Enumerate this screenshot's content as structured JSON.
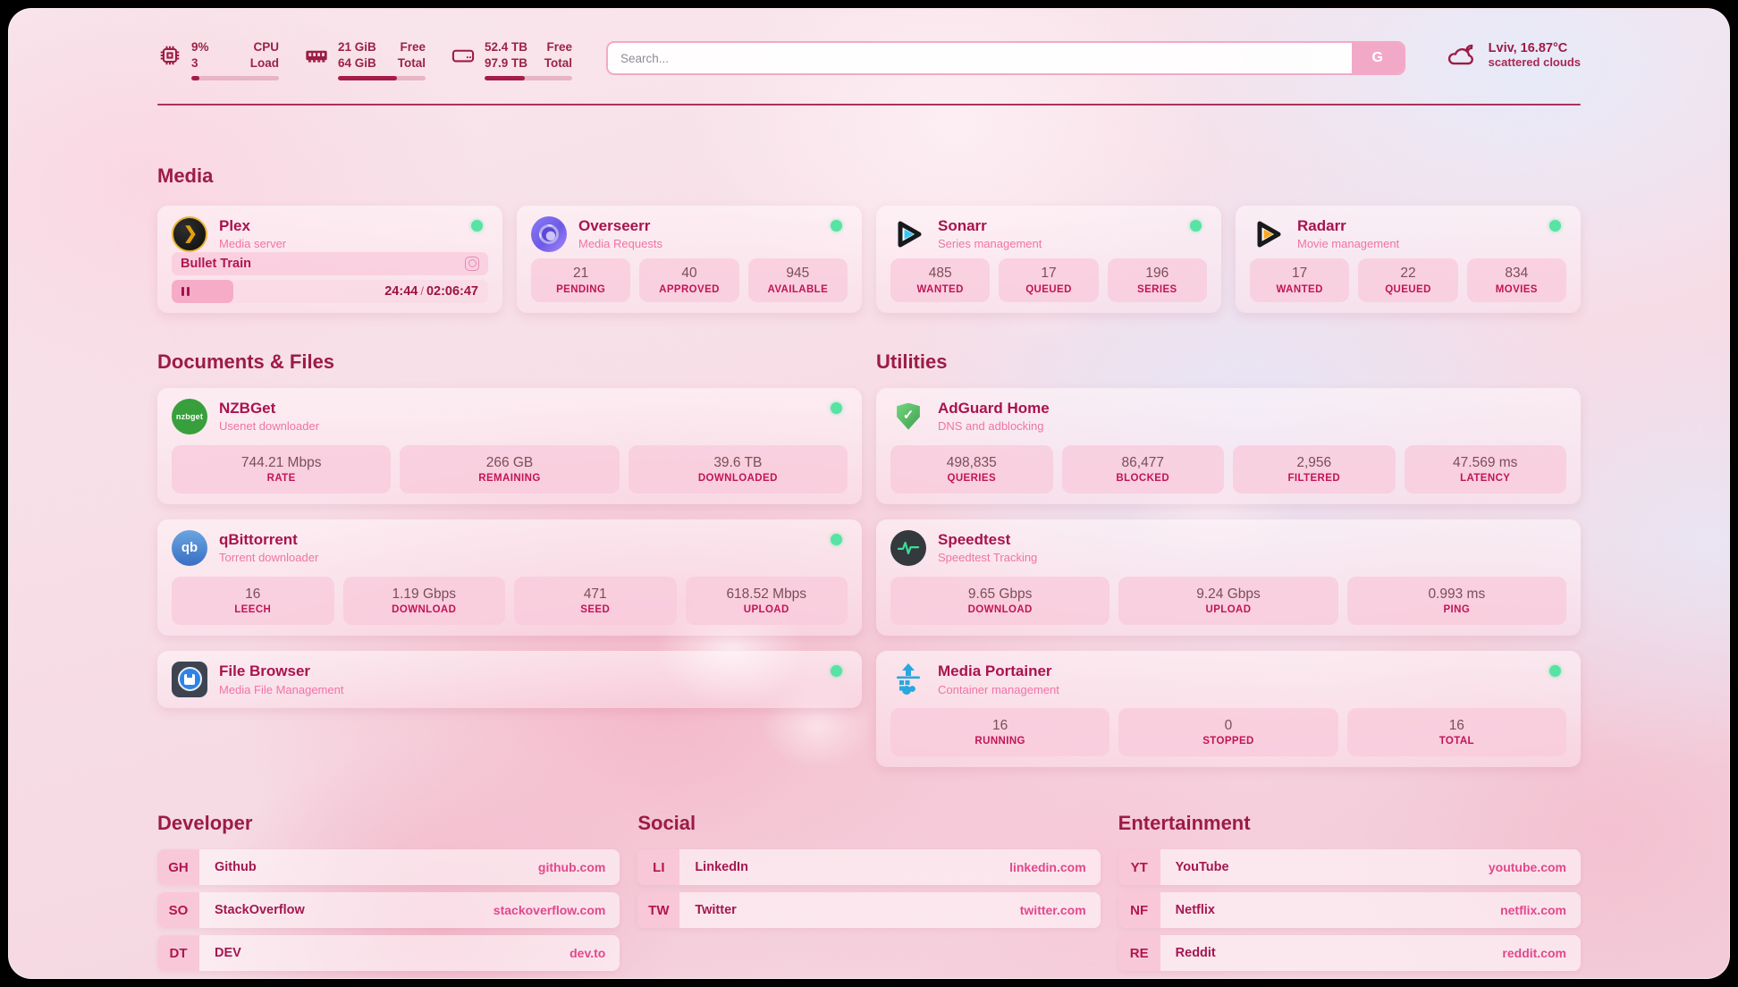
{
  "colors": {
    "accent": "#a61c48",
    "heading": "#9c1b47",
    "subtitle_pink": "#f074a4",
    "stat_label": "#c11556",
    "stat_value": "#7b4d59",
    "link_url": "#e1488c",
    "status_dot_green": "#57e3a3",
    "search_border": "#f2a9c7"
  },
  "icons": {
    "cpu-chip-icon": "svg-chip",
    "ram-icon": "svg-ram-stick",
    "disk-icon": "svg-drive",
    "cloud-icon": "svg-cloud-outline",
    "plex-icon": "❯",
    "overseerr-icon": "css-purple-eye-circle",
    "sonarr-icon": "svg-play-triangle-blue",
    "radarr-icon": "svg-play-triangle-orange",
    "nzbget-icon": "nzbget",
    "qbittorrent-icon": "qb",
    "filebrowser-icon": "css-floppy-in-circle",
    "adguard-icon": "✓",
    "speedtest-icon": "svg-pulse-line",
    "portainer-icon": "svg-crane-blocks",
    "now-playing-icon": "css-lens-square",
    "pause-icon": "css-double-bars",
    "status-dot": "css-green-dot"
  },
  "topbar": {
    "cpu": {
      "value_top": "9%",
      "value_bottom": "3",
      "label_top": "CPU",
      "label_bottom": "Load",
      "bar_percent": 9
    },
    "ram": {
      "value_top": "21 GiB",
      "value_bottom": "64 GiB",
      "label_top": "Free",
      "label_bottom": "Total",
      "bar_percent": 67
    },
    "disk": {
      "value_top": "52.4 TB",
      "value_bottom": "97.9 TB",
      "label_top": "Free",
      "label_bottom": "Total",
      "bar_percent": 46
    },
    "search": {
      "placeholder": "Search...",
      "button_label": "G"
    },
    "weather": {
      "location_temp": "Lviv, 16.87°C",
      "condition": "scattered clouds"
    }
  },
  "sections": {
    "media": {
      "title": "Media",
      "cards": [
        {
          "name": "Plex",
          "subtitle": "Media server",
          "online": true,
          "now_playing": {
            "title": "Bullet Train",
            "time": "24:44",
            "separator": "/",
            "duration": "02:06:47",
            "progress_percent": 19.5
          }
        },
        {
          "name": "Overseerr",
          "subtitle": "Media Requests",
          "online": true,
          "stats": [
            {
              "value": "21",
              "label": "PENDING"
            },
            {
              "value": "40",
              "label": "APPROVED"
            },
            {
              "value": "945",
              "label": "AVAILABLE"
            }
          ]
        },
        {
          "name": "Sonarr",
          "subtitle": "Series management",
          "online": true,
          "stats": [
            {
              "value": "485",
              "label": "WANTED"
            },
            {
              "value": "17",
              "label": "QUEUED"
            },
            {
              "value": "196",
              "label": "SERIES"
            }
          ]
        },
        {
          "name": "Radarr",
          "subtitle": "Movie management",
          "online": true,
          "stats": [
            {
              "value": "17",
              "label": "WANTED"
            },
            {
              "value": "22",
              "label": "QUEUED"
            },
            {
              "value": "834",
              "label": "MOVIES"
            }
          ]
        }
      ]
    },
    "documents": {
      "title": "Documents & Files",
      "cards": [
        {
          "name": "NZBGet",
          "subtitle": "Usenet downloader",
          "online": true,
          "stats": [
            {
              "value": "744.21 Mbps",
              "label": "RATE"
            },
            {
              "value": "266 GB",
              "label": "REMAINING"
            },
            {
              "value": "39.6 TB",
              "label": "DOWNLOADED"
            }
          ]
        },
        {
          "name": "qBittorrent",
          "subtitle": "Torrent downloader",
          "online": true,
          "stats": [
            {
              "value": "16",
              "label": "LEECH"
            },
            {
              "value": "1.19 Gbps",
              "label": "DOWNLOAD"
            },
            {
              "value": "471",
              "label": "SEED"
            },
            {
              "value": "618.52 Mbps",
              "label": "UPLOAD"
            }
          ]
        },
        {
          "name": "File Browser",
          "subtitle": "Media File Management",
          "online": true,
          "stats": []
        }
      ]
    },
    "utilities": {
      "title": "Utilities",
      "cards": [
        {
          "name": "AdGuard Home",
          "subtitle": "DNS and adblocking",
          "online": false,
          "stats": [
            {
              "value": "498,835",
              "label": "QUERIES"
            },
            {
              "value": "86,477",
              "label": "BLOCKED"
            },
            {
              "value": "2,956",
              "label": "FILTERED"
            },
            {
              "value": "47.569 ms",
              "label": "LATENCY"
            }
          ]
        },
        {
          "name": "Speedtest",
          "subtitle": "Speedtest Tracking",
          "online": false,
          "stats": [
            {
              "value": "9.65 Gbps",
              "label": "DOWNLOAD"
            },
            {
              "value": "9.24 Gbps",
              "label": "UPLOAD"
            },
            {
              "value": "0.993 ms",
              "label": "PING"
            }
          ]
        },
        {
          "name": "Media Portainer",
          "subtitle": "Container management",
          "online": true,
          "stats": [
            {
              "value": "16",
              "label": "RUNNING"
            },
            {
              "value": "0",
              "label": "STOPPED"
            },
            {
              "value": "16",
              "label": "TOTAL"
            }
          ]
        }
      ]
    },
    "developer": {
      "title": "Developer",
      "links": [
        {
          "tag": "GH",
          "name": "Github",
          "url": "github.com"
        },
        {
          "tag": "SO",
          "name": "StackOverflow",
          "url": "stackoverflow.com"
        },
        {
          "tag": "DT",
          "name": "DEV",
          "url": "dev.to"
        }
      ]
    },
    "social": {
      "title": "Social",
      "links": [
        {
          "tag": "LI",
          "name": "LinkedIn",
          "url": "linkedin.com"
        },
        {
          "tag": "TW",
          "name": "Twitter",
          "url": "twitter.com"
        }
      ]
    },
    "entertainment": {
      "title": "Entertainment",
      "links": [
        {
          "tag": "YT",
          "name": "YouTube",
          "url": "youtube.com"
        },
        {
          "tag": "NF",
          "name": "Netflix",
          "url": "netflix.com"
        },
        {
          "tag": "RE",
          "name": "Reddit",
          "url": "reddit.com"
        }
      ]
    }
  }
}
